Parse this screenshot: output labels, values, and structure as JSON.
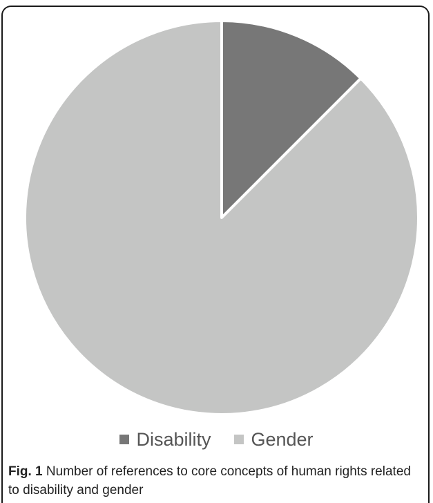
{
  "chart_data": {
    "type": "pie",
    "categories": [
      "Disability",
      "Gender"
    ],
    "values": [
      12.5,
      87.5
    ],
    "colors": [
      "#777777",
      "#c4c5c4"
    ],
    "legend_position": "bottom"
  },
  "legend": {
    "items": [
      {
        "label": "Disability",
        "color": "#777777"
      },
      {
        "label": "Gender",
        "color": "#c4c5c4"
      }
    ]
  },
  "caption": {
    "label": "Fig. 1",
    "text": "Number of references to core concepts of human rights related to disability and gender"
  }
}
